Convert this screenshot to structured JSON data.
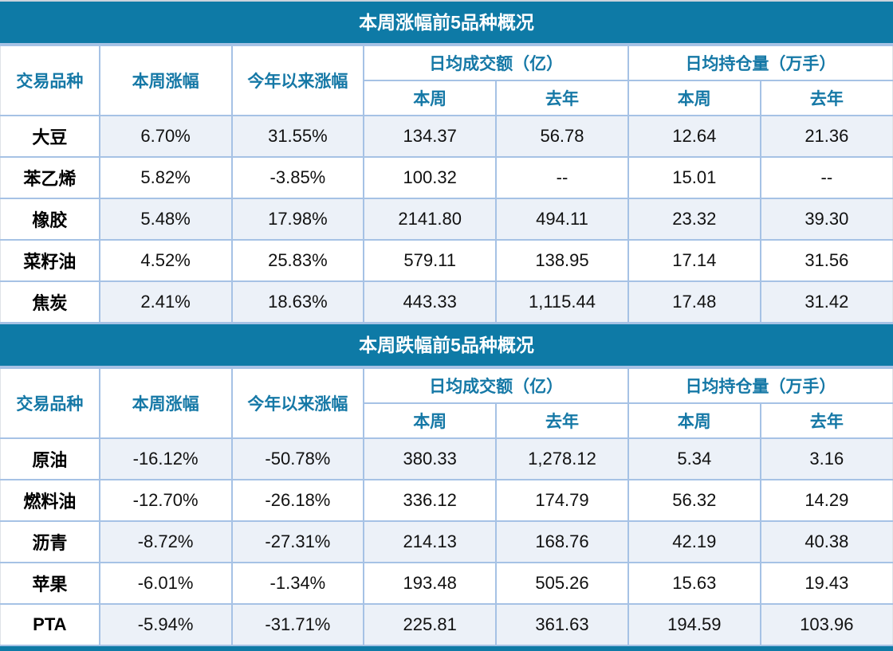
{
  "colors": {
    "band_background": "#0E7AA6",
    "band_text": "#FFFFFF",
    "header_text": "#1578A6",
    "grid_border": "#A6C2E5",
    "alt_row_fill": "#ECF1F8",
    "body_text": "#111111"
  },
  "chart_data": [
    {
      "type": "table",
      "title": "本周涨幅前5品种概况",
      "headers": {
        "product": "交易品种",
        "week_change": "本周涨幅",
        "ytd_change": "今年以来涨幅",
        "avg_turnover_group": "日均成交额（亿）",
        "avg_open_interest_group": "日均持仓量（万手）",
        "this_week": "本周",
        "last_year": "去年"
      },
      "rows": [
        [
          "大豆",
          "6.70%",
          "31.55%",
          "134.37",
          "56.78",
          "12.64",
          "21.36"
        ],
        [
          "苯乙烯",
          "5.82%",
          "-3.85%",
          "100.32",
          "--",
          "15.01",
          "--"
        ],
        [
          "橡胶",
          "5.48%",
          "17.98%",
          "2141.80",
          "494.11",
          "23.32",
          "39.30"
        ],
        [
          "菜籽油",
          "4.52%",
          "25.83%",
          "579.11",
          "138.95",
          "17.14",
          "31.56"
        ],
        [
          "焦炭",
          "2.41%",
          "18.63%",
          "443.33",
          "1,115.44",
          "17.48",
          "31.42"
        ]
      ]
    },
    {
      "type": "table",
      "title": "本周跌幅前5品种概况",
      "headers": {
        "product": "交易品种",
        "week_change": "本周涨幅",
        "ytd_change": "今年以来涨幅",
        "avg_turnover_group": "日均成交额（亿）",
        "avg_open_interest_group": "日均持仓量（万手）",
        "this_week": "本周",
        "last_year": "去年"
      },
      "rows": [
        [
          "原油",
          "-16.12%",
          "-50.78%",
          "380.33",
          "1,278.12",
          "5.34",
          "3.16"
        ],
        [
          "燃料油",
          "-12.70%",
          "-26.18%",
          "336.12",
          "174.79",
          "56.32",
          "14.29"
        ],
        [
          "沥青",
          "-8.72%",
          "-27.31%",
          "214.13",
          "168.76",
          "42.19",
          "40.38"
        ],
        [
          "苹果",
          "-6.01%",
          "-1.34%",
          "193.48",
          "505.26",
          "15.63",
          "19.43"
        ],
        [
          "PTA",
          "-5.94%",
          "-31.71%",
          "225.81",
          "361.63",
          "194.59",
          "103.96"
        ]
      ]
    }
  ]
}
